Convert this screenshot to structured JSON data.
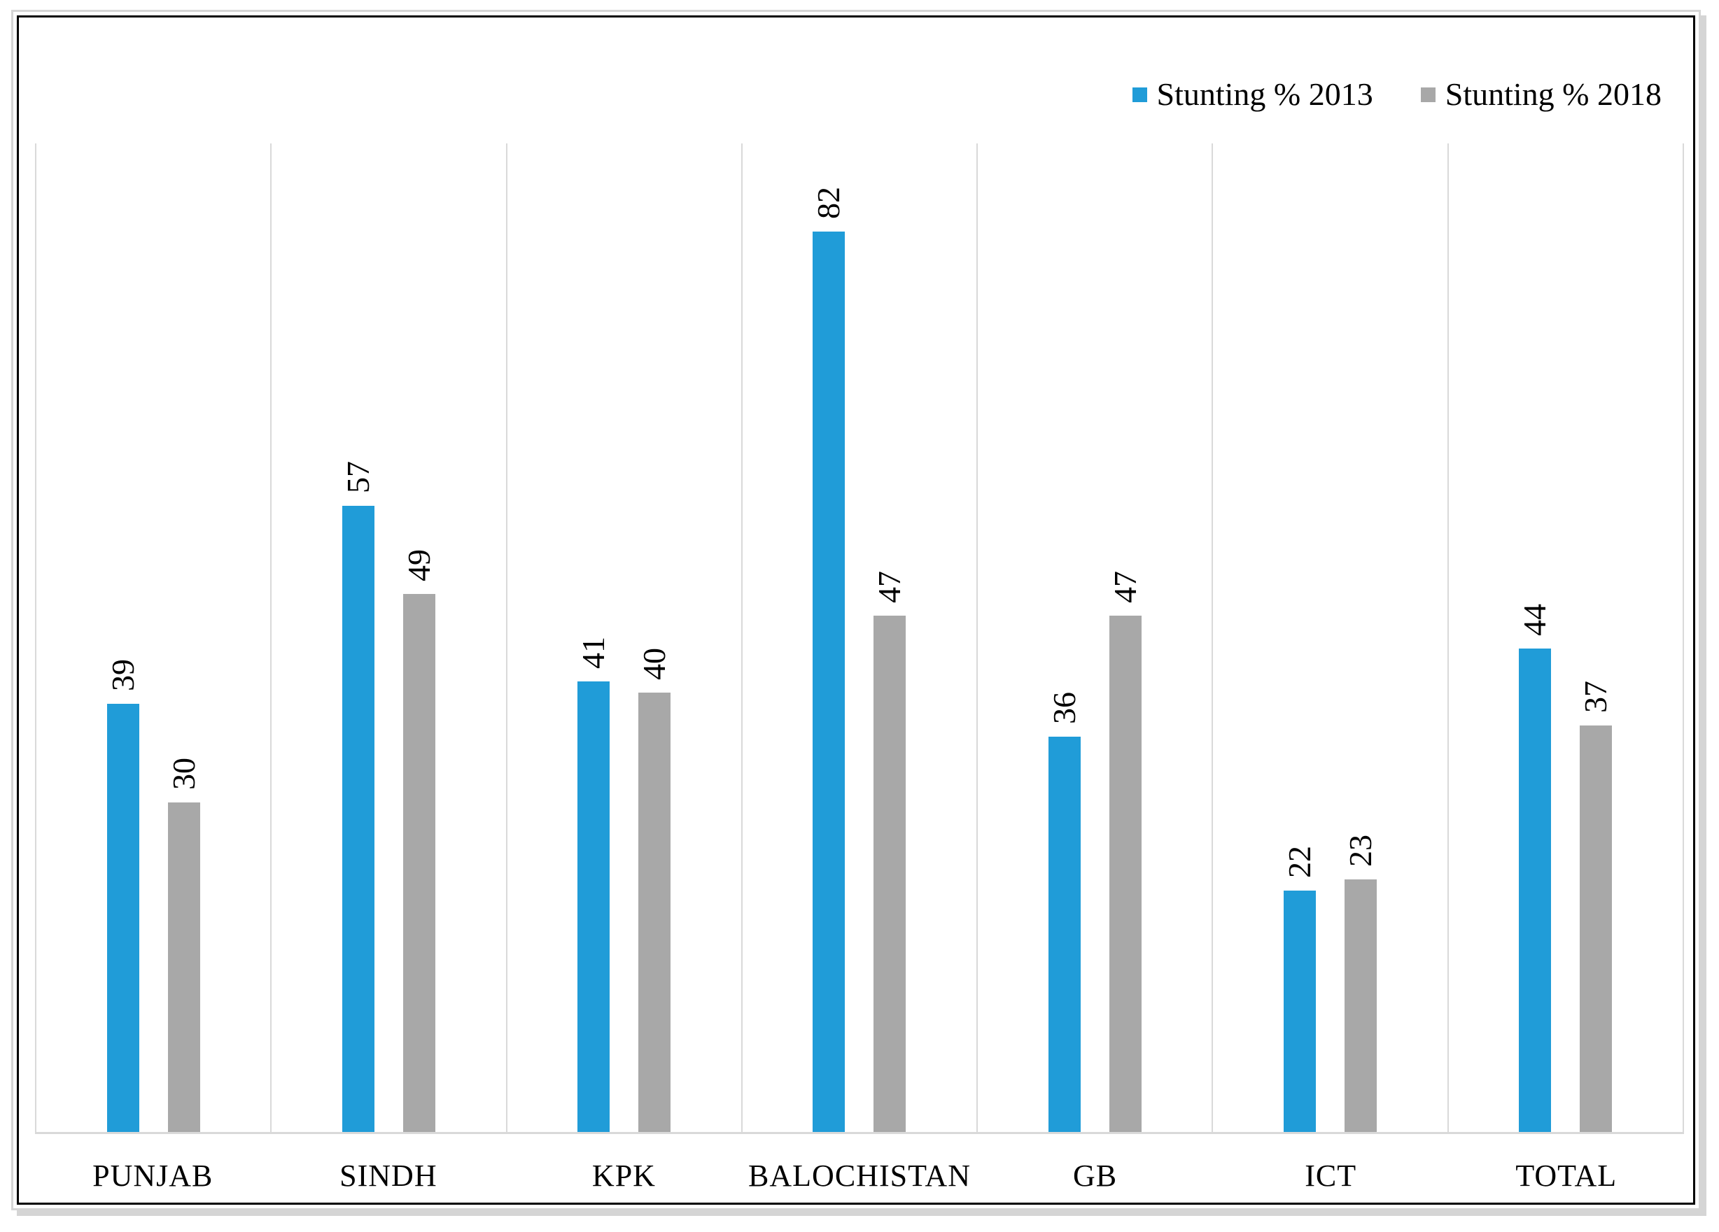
{
  "chart_data": {
    "type": "bar",
    "title": "",
    "xlabel": "",
    "ylabel": "",
    "categories": [
      "PUNJAB",
      "SINDH",
      "KPK",
      "BALOCHISTAN",
      "GB",
      "ICT",
      "TOTAL"
    ],
    "series": [
      {
        "name": "Stunting % 2013",
        "color": "#209CD8",
        "values": [
          39,
          57,
          41,
          82,
          36,
          22,
          44
        ]
      },
      {
        "name": "Stunting % 2018",
        "color": "#A8A8A8",
        "values": [
          30,
          49,
          40,
          47,
          47,
          23,
          37
        ]
      }
    ],
    "ylim": [
      0,
      90
    ],
    "y_axis_labels_visible": false,
    "gridlines": "vertical-category-boundaries",
    "legend_position": "top-right",
    "data_labels": "values shown above bars, rotated 90 degrees reading bottom-to-top"
  },
  "styles": {
    "gridline_color": "#D9D9D9",
    "axis_line_color": "#D9D9D9",
    "chart_border_color": "#000000",
    "outer_frame_color": "#D5D5D5",
    "background_color": "#FFFFFF",
    "text_color": "#000000"
  }
}
